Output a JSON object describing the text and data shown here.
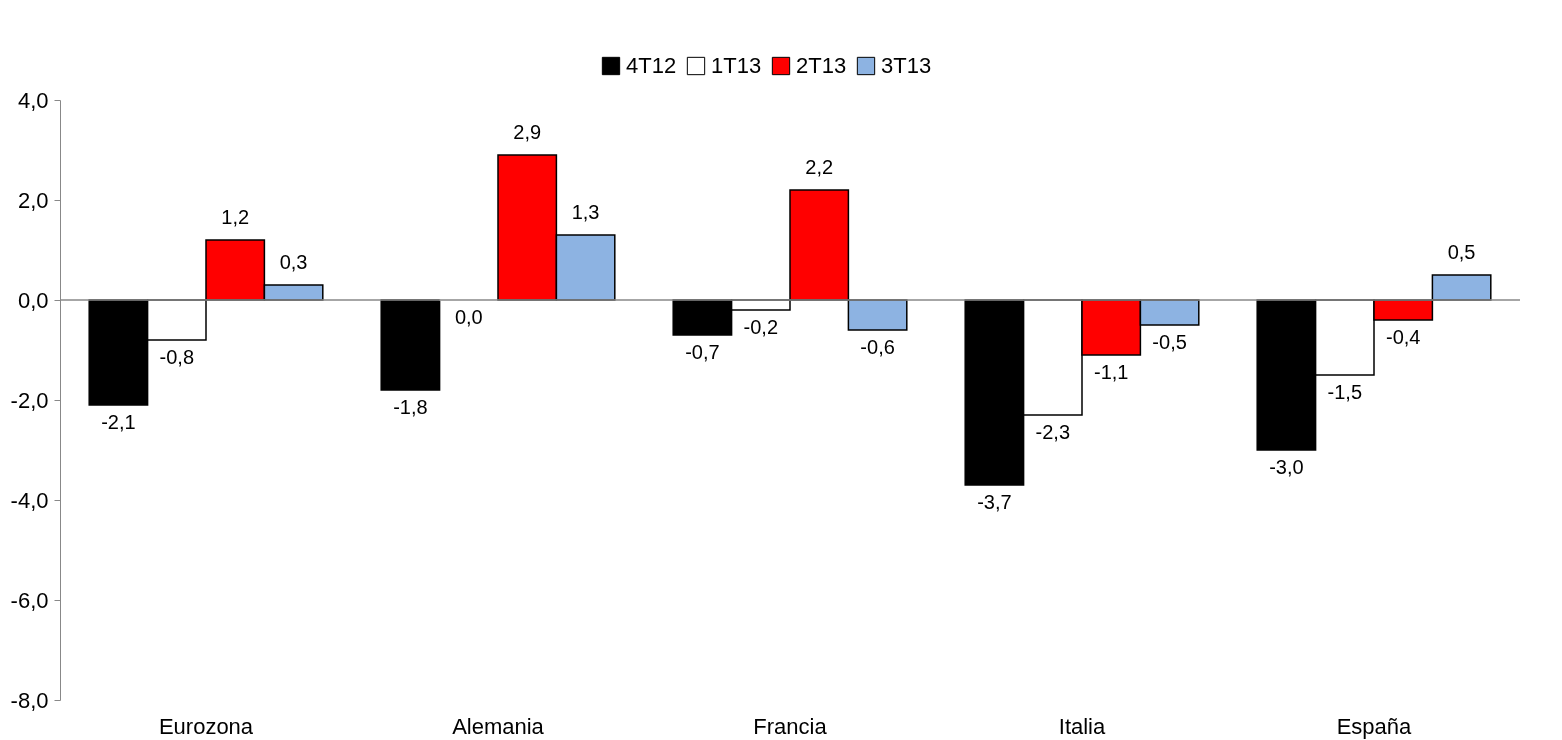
{
  "chart_data": {
    "type": "bar",
    "categories": [
      "Eurozona",
      "Alemania",
      "Francia",
      "Italia",
      "España"
    ],
    "series": [
      {
        "name": "4T12",
        "color": "#000000",
        "values": [
          -2.1,
          -1.8,
          -0.7,
          -3.7,
          -3.0
        ],
        "value_labels": [
          "-2,1",
          "-1,8",
          "-0,7",
          "-3,7",
          "-3,0"
        ]
      },
      {
        "name": "1T13",
        "color": "#ffffff",
        "values": [
          -0.8,
          0.0,
          -0.2,
          -2.3,
          -1.5
        ],
        "value_labels": [
          "-0,8",
          "0,0",
          "-0,2",
          "-2,3",
          "-1,5"
        ]
      },
      {
        "name": "2T13",
        "color": "#ff0000",
        "values": [
          1.2,
          2.9,
          2.2,
          -1.1,
          -0.4
        ],
        "value_labels": [
          "1,2",
          "2,9",
          "2,2",
          "-1,1",
          "-0,4"
        ]
      },
      {
        "name": "3T13",
        "color": "#8db3e2",
        "values": [
          0.3,
          1.3,
          -0.6,
          -0.5,
          0.5
        ],
        "value_labels": [
          "0,3",
          "1,3",
          "-0,6",
          "-0,5",
          "0,5"
        ]
      }
    ],
    "ylim": [
      -8,
      4
    ],
    "yticks": [
      {
        "value": -8,
        "label": "-8,0"
      },
      {
        "value": -6,
        "label": "-6,0"
      },
      {
        "value": -4,
        "label": "-4,0"
      },
      {
        "value": -2,
        "label": "-2,0"
      },
      {
        "value": 0,
        "label": "0,0"
      },
      {
        "value": 2,
        "label": "2,0"
      },
      {
        "value": 4,
        "label": "4,0"
      }
    ],
    "ref_lines": [
      {
        "axis": "y",
        "value": 0,
        "color": "#888888"
      }
    ],
    "grid": false,
    "legend": "top"
  }
}
